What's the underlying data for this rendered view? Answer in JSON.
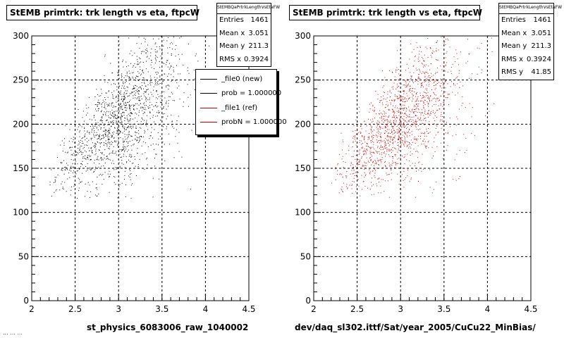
{
  "colors": {
    "ref_marker": "#000000",
    "new_marker": "#cc0000",
    "legend_new": "#000000",
    "legend_ref": "#cc0000"
  },
  "footer_text": "... ...  ...",
  "chart_data": [
    {
      "type": "scatter",
      "title": "StEMB primtrk: trk length vs eta, ftpcW",
      "xlabel": "st_physics_6083006_raw_1040002",
      "ylabel": "",
      "xlim": [
        2,
        4.5
      ],
      "ylim": [
        0,
        300
      ],
      "xticks": [
        "2",
        "2.5",
        "3",
        "3.5",
        "4",
        "4.5"
      ],
      "yticks": [
        "0",
        "50",
        "100",
        "150",
        "200",
        "250",
        "300"
      ],
      "grid": true,
      "marker_color": "#000000",
      "stats": {
        "name": "StEMBQaPrtrkLengthVsEtaFW",
        "rows": [
          {
            "label": "Entries",
            "value": "1461"
          },
          {
            "label": "Mean x",
            "value": "3.051"
          },
          {
            "label": "Mean y",
            "value": "211.3"
          },
          {
            "label": "RMS x",
            "value": "0.3924"
          }
        ]
      },
      "legend": {
        "placement": "top-right",
        "entries": [
          "_file0 (new)",
          "prob = 1.000000",
          "_file1 (ref)",
          "probN = 1.000000"
        ],
        "entry_colors": [
          "#000000",
          "#000000",
          "#cc0000",
          "#cc0000"
        ]
      },
      "distribution": {
        "entries": 1461,
        "mean_x": 3.051,
        "mean_y": 211.3,
        "rms_x": 0.3924,
        "rms_y": 41.85
      }
    },
    {
      "type": "scatter",
      "title": "StEMB primtrk: trk length vs eta, ftpcW",
      "xlabel": "dev/daq_sl302.ittf/Sat/year_2005/CuCu22_MinBias/",
      "ylabel": "",
      "xlim": [
        2,
        4.5
      ],
      "ylim": [
        0,
        300
      ],
      "xticks": [
        "2",
        "2.5",
        "3",
        "3.5",
        "4",
        "4.5"
      ],
      "yticks": [
        "0",
        "50",
        "100",
        "150",
        "200",
        "250",
        "300"
      ],
      "grid": true,
      "marker_color": "#cc0000",
      "stats": {
        "name": "StEMBQaPrtrkLengthVsEtaFW",
        "rows": [
          {
            "label": "Entries",
            "value": "1461"
          },
          {
            "label": "Mean x",
            "value": "3.051"
          },
          {
            "label": "Mean y",
            "value": "211.3"
          },
          {
            "label": "RMS x",
            "value": "0.3924"
          },
          {
            "label": "RMS y",
            "value": "41.85"
          }
        ]
      },
      "distribution": {
        "entries": 1461,
        "mean_x": 3.051,
        "mean_y": 211.3,
        "rms_x": 0.3924,
        "rms_y": 41.85
      }
    }
  ]
}
